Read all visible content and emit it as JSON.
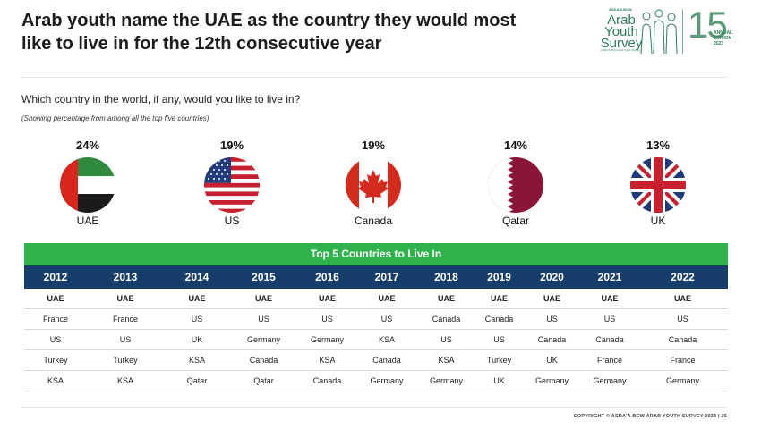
{
  "header": {
    "title": "Arab youth name the UAE as the country they would most like to live in for the 12th consecutive year"
  },
  "logo": {
    "brand_small": "ASDA'A BCW",
    "line1": "Arab",
    "line2": "Youth",
    "line3": "Survey",
    "tagline": "ASDA'A BCW Arab Youth Survey",
    "number": "15",
    "edition_line1": "ANNUAL",
    "edition_line2": "EDITION",
    "edition_line3": "2023"
  },
  "question": "Which country in the world, if any, would you like to live in?",
  "subnote": "(Showing percentage from among all the top five countries)",
  "countries": [
    {
      "name": "UAE",
      "pct": "24%",
      "flag": "uae-flag"
    },
    {
      "name": "US",
      "pct": "19%",
      "flag": "us-flag"
    },
    {
      "name": "Canada",
      "pct": "19%",
      "flag": "canada-flag"
    },
    {
      "name": "Qatar",
      "pct": "14%",
      "flag": "qatar-flag"
    },
    {
      "name": "UK",
      "pct": "13%",
      "flag": "uk-flag"
    }
  ],
  "table": {
    "title": "Top 5 Countries to Live In",
    "years": [
      "2012",
      "2013",
      "2014",
      "2015",
      "2016",
      "2017",
      "2018",
      "2019",
      "2020",
      "2021",
      "2022"
    ],
    "rows": [
      [
        "UAE",
        "UAE",
        "UAE",
        "UAE",
        "UAE",
        "UAE",
        "UAE",
        "UAE",
        "UAE",
        "UAE",
        "UAE"
      ],
      [
        "France",
        "France",
        "US",
        "US",
        "US",
        "US",
        "Canada",
        "Canada",
        "US",
        "US",
        "US"
      ],
      [
        "US",
        "US",
        "UK",
        "Germany",
        "Germany",
        "KSA",
        "US",
        "US",
        "Canada",
        "Canada",
        "Canada"
      ],
      [
        "Turkey",
        "Turkey",
        "KSA",
        "Canada",
        "KSA",
        "Canada",
        "KSA",
        "Turkey",
        "UK",
        "France",
        "France"
      ],
      [
        "KSA",
        "KSA",
        "Qatar",
        "Qatar",
        "Canada",
        "Germany",
        "Germany",
        "UK",
        "Germany",
        "Germany",
        "Germany"
      ]
    ]
  },
  "footer": "COPYRIGHT © ASDA'A BCW ARAB YOUTH SURVEY 2023 | 25",
  "colors": {
    "banner_green": "#2fb24c",
    "header_navy": "#173d6a",
    "brand_green": "#2e7d5a"
  }
}
